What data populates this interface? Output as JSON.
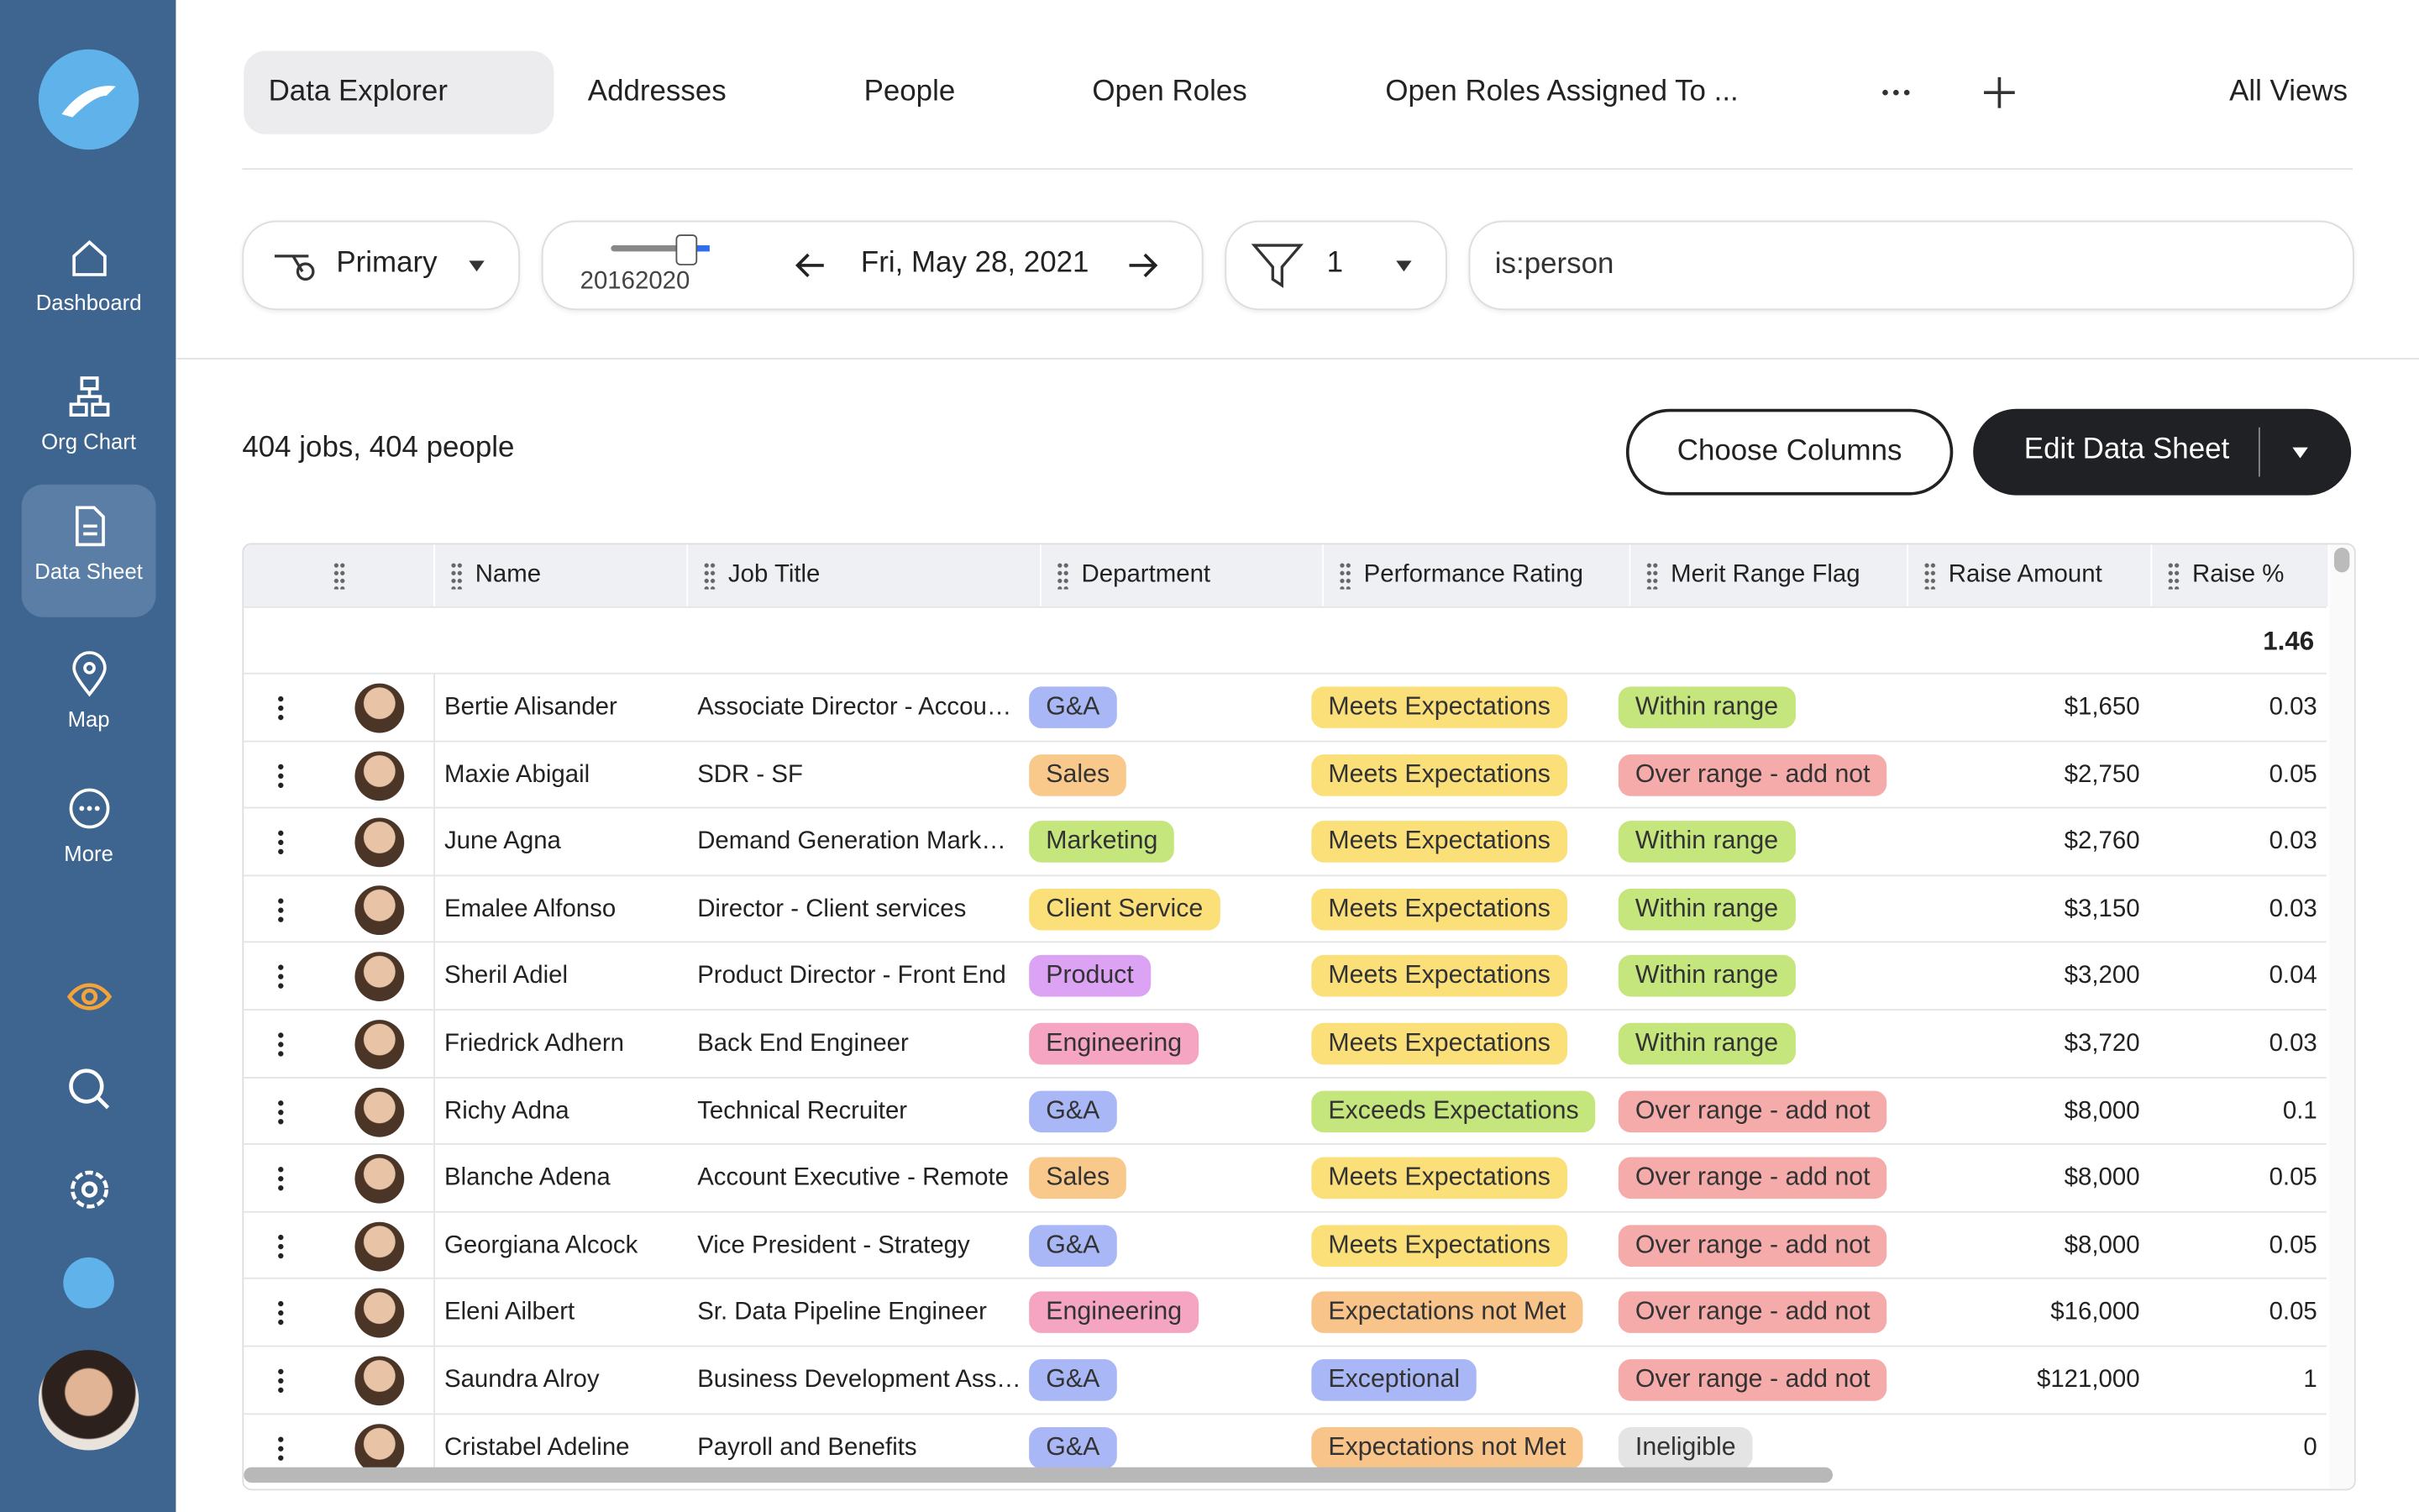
{
  "sidebar": {
    "items": [
      {
        "label": "Dashboard"
      },
      {
        "label": "Org Chart"
      },
      {
        "label": "Data Sheet"
      },
      {
        "label": "Map"
      },
      {
        "label": "More"
      }
    ]
  },
  "tabs": [
    "Data Explorer",
    "Addresses",
    "People",
    "Open Roles",
    "Open Roles Assigned To ..."
  ],
  "all_views": "All Views",
  "toolbar": {
    "view": "Primary",
    "slider_label": "20162020",
    "date": "Fri, May 28, 2021",
    "filter_count": "1",
    "search": "is:person"
  },
  "summary": "404 jobs, 404 people",
  "buttons": {
    "choose_columns": "Choose Columns",
    "edit": "Edit Data Sheet"
  },
  "table": {
    "columns": [
      "Name",
      "Job Title",
      "Department",
      "Performance Rating",
      "Merit Range Flag",
      "Raise Amount",
      "Raise %"
    ],
    "total": "1.46",
    "rows": [
      [
        "Bertie Alisander",
        "Associate Director - Accou…",
        {
          "text": "G&A",
          "color": "#a9b7f6"
        },
        {
          "text": "Meets Expectations",
          "color": "#fbe07a"
        },
        {
          "text": "Within range",
          "color": "#c4e67c"
        },
        "$1,650",
        "0.03"
      ],
      [
        "Maxie Abigail",
        "SDR - SF",
        {
          "text": "Sales",
          "color": "#f9c98c"
        },
        {
          "text": "Meets Expectations",
          "color": "#fbe07a"
        },
        {
          "text": "Over range - add not",
          "color": "#f6abab"
        },
        "$2,750",
        "0.05"
      ],
      [
        "June Agna",
        "Demand Generation Mark…",
        {
          "text": "Marketing",
          "color": "#c4e67c"
        },
        {
          "text": "Meets Expectations",
          "color": "#fbe07a"
        },
        {
          "text": "Within range",
          "color": "#c4e67c"
        },
        "$2,760",
        "0.03"
      ],
      [
        "Emalee Alfonso",
        "Director - Client services",
        {
          "text": "Client Service",
          "color": "#fbe07a"
        },
        {
          "text": "Meets Expectations",
          "color": "#fbe07a"
        },
        {
          "text": "Within range",
          "color": "#c4e67c"
        },
        "$3,150",
        "0.03"
      ],
      [
        "Sheril Adiel",
        "Product Director - Front End",
        {
          "text": "Product",
          "color": "#dca2f4"
        },
        {
          "text": "Meets Expectations",
          "color": "#fbe07a"
        },
        {
          "text": "Within range",
          "color": "#c4e67c"
        },
        "$3,200",
        "0.04"
      ],
      [
        "Friedrick Adhern",
        "Back End Engineer",
        {
          "text": "Engineering",
          "color": "#f5a5c2"
        },
        {
          "text": "Meets Expectations",
          "color": "#fbe07a"
        },
        {
          "text": "Within range",
          "color": "#c4e67c"
        },
        "$3,720",
        "0.03"
      ],
      [
        "Richy Adna",
        "Technical Recruiter",
        {
          "text": "G&A",
          "color": "#a9b7f6"
        },
        {
          "text": "Exceeds Expectations",
          "color": "#c4e67c"
        },
        {
          "text": "Over range - add not",
          "color": "#f6abab"
        },
        "$8,000",
        "0.1"
      ],
      [
        "Blanche Adena",
        "Account Executive - Remote",
        {
          "text": "Sales",
          "color": "#f9c98c"
        },
        {
          "text": "Meets Expectations",
          "color": "#fbe07a"
        },
        {
          "text": "Over range - add not",
          "color": "#f6abab"
        },
        "$8,000",
        "0.05"
      ],
      [
        "Georgiana Alcock",
        "Vice President - Strategy",
        {
          "text": "G&A",
          "color": "#a9b7f6"
        },
        {
          "text": "Meets Expectations",
          "color": "#fbe07a"
        },
        {
          "text": "Over range - add not",
          "color": "#f6abab"
        },
        "$8,000",
        "0.05"
      ],
      [
        "Eleni Ailbert",
        "Sr. Data Pipeline Engineer",
        {
          "text": "Engineering",
          "color": "#f5a5c2"
        },
        {
          "text": "Expectations not Met",
          "color": "#f9c48a"
        },
        {
          "text": "Over range - add not",
          "color": "#f6abab"
        },
        "$16,000",
        "0.05"
      ],
      [
        "Saundra Alroy",
        "Business Development Ass…",
        {
          "text": "G&A",
          "color": "#a9b7f6"
        },
        {
          "text": "Exceptional",
          "color": "#a9b7f6"
        },
        {
          "text": "Over range - add not",
          "color": "#f6abab"
        },
        "$121,000",
        "1"
      ],
      [
        "Cristabel Adeline",
        "Payroll and Benefits",
        {
          "text": "G&A",
          "color": "#a9b7f6"
        },
        {
          "text": "Expectations not Met",
          "color": "#f9c48a"
        },
        {
          "text": "Ineligible",
          "color": "#e4e4e4"
        },
        "",
        "0"
      ]
    ]
  }
}
